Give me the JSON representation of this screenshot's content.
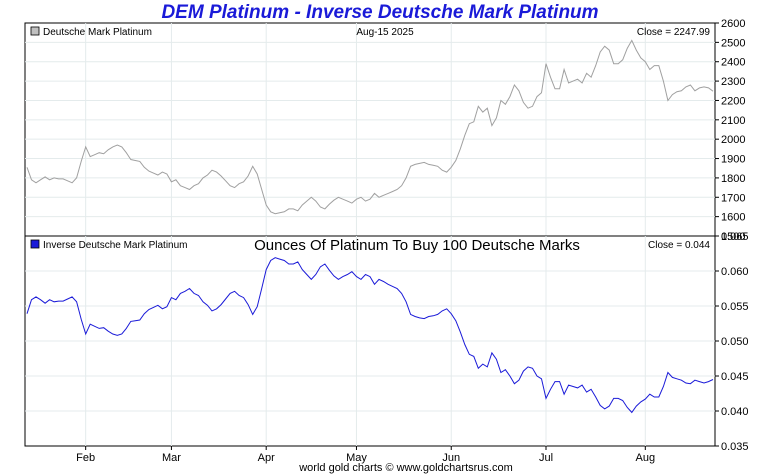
{
  "title": "DEM Platinum - Inverse Deutsche Mark Platinum",
  "footer": "world gold charts © www.goldchartsrus.com",
  "colors": {
    "title": "#1a1ad8",
    "top_series": "#a0a0a0",
    "bottom_series": "#1a1ad8",
    "grid": "#e4ebec"
  },
  "chart_data": [
    {
      "type": "line",
      "date_label": "Aug-15  2025",
      "close_label": "Close = 2247.99",
      "series": [
        {
          "name": "Deutsche Mark Platinum",
          "values": [
            1855,
            1790,
            1775,
            1790,
            1805,
            1790,
            1800,
            1795,
            1795,
            1785,
            1775,
            1800,
            1885,
            1960,
            1910,
            1920,
            1930,
            1925,
            1945,
            1960,
            1970,
            1960,
            1930,
            1895,
            1890,
            1885,
            1855,
            1835,
            1825,
            1815,
            1830,
            1820,
            1780,
            1790,
            1760,
            1750,
            1740,
            1760,
            1770,
            1800,
            1815,
            1840,
            1830,
            1810,
            1785,
            1760,
            1750,
            1770,
            1780,
            1810,
            1860,
            1820,
            1740,
            1660,
            1625,
            1615,
            1620,
            1625,
            1640,
            1640,
            1630,
            1660,
            1680,
            1700,
            1680,
            1650,
            1640,
            1665,
            1685,
            1700,
            1690,
            1680,
            1670,
            1690,
            1700,
            1680,
            1690,
            1720,
            1700,
            1710,
            1720,
            1730,
            1740,
            1760,
            1800,
            1860,
            1870,
            1875,
            1880,
            1870,
            1865,
            1860,
            1840,
            1830,
            1855,
            1890,
            1950,
            2020,
            2080,
            2090,
            2170,
            2140,
            2160,
            2070,
            2110,
            2200,
            2180,
            2220,
            2280,
            2250,
            2190,
            2160,
            2170,
            2220,
            2240,
            2390,
            2320,
            2260,
            2260,
            2360,
            2290,
            2300,
            2310,
            2290,
            2340,
            2320,
            2380,
            2450,
            2480,
            2460,
            2390,
            2390,
            2410,
            2470,
            2510,
            2460,
            2420,
            2400,
            2360,
            2380,
            2380,
            2300,
            2200,
            2230,
            2245,
            2250,
            2270,
            2280,
            2250,
            2265,
            2270,
            2265,
            2248
          ]
        }
      ],
      "ylim": [
        1500,
        2600
      ],
      "yticks": [
        1500,
        1600,
        1700,
        1800,
        1900,
        2000,
        2100,
        2200,
        2300,
        2400,
        2500,
        2600
      ],
      "grid": true
    },
    {
      "type": "line",
      "subtitle": "Ounces Of Platinum To Buy 100 Deutsche Marks",
      "close_label": "Close = 0.044",
      "series": [
        {
          "name": "Inverse Deutsche Mark Platinum",
          "values": [
            0.0539,
            0.0559,
            0.0563,
            0.0559,
            0.0554,
            0.0559,
            0.0556,
            0.0557,
            0.0557,
            0.056,
            0.0563,
            0.0556,
            0.0531,
            0.051,
            0.0524,
            0.0521,
            0.0518,
            0.0519,
            0.0514,
            0.051,
            0.0508,
            0.051,
            0.0518,
            0.0528,
            0.0529,
            0.053,
            0.0539,
            0.0545,
            0.0548,
            0.0551,
            0.0546,
            0.0549,
            0.0562,
            0.0559,
            0.0568,
            0.0571,
            0.0575,
            0.0568,
            0.0565,
            0.0556,
            0.0551,
            0.0543,
            0.0546,
            0.0552,
            0.056,
            0.0568,
            0.0571,
            0.0565,
            0.0562,
            0.0552,
            0.0538,
            0.0549,
            0.0575,
            0.0602,
            0.0615,
            0.0619,
            0.0617,
            0.0615,
            0.061,
            0.061,
            0.0613,
            0.0602,
            0.0595,
            0.0588,
            0.0595,
            0.0606,
            0.061,
            0.0601,
            0.0593,
            0.0588,
            0.0592,
            0.0595,
            0.0599,
            0.0592,
            0.0588,
            0.0595,
            0.0592,
            0.0581,
            0.0588,
            0.0585,
            0.0581,
            0.0578,
            0.0575,
            0.0568,
            0.0556,
            0.0538,
            0.0535,
            0.0533,
            0.0532,
            0.0535,
            0.0536,
            0.0538,
            0.0543,
            0.0546,
            0.0539,
            0.0529,
            0.0513,
            0.0495,
            0.0481,
            0.0478,
            0.0461,
            0.0467,
            0.0463,
            0.0483,
            0.0474,
            0.0455,
            0.0459,
            0.045,
            0.0439,
            0.0444,
            0.0457,
            0.0463,
            0.0461,
            0.045,
            0.0446,
            0.0418,
            0.0431,
            0.0442,
            0.0442,
            0.0424,
            0.0437,
            0.0435,
            0.0433,
            0.0437,
            0.0427,
            0.0431,
            0.042,
            0.0408,
            0.0403,
            0.0407,
            0.0418,
            0.0418,
            0.0415,
            0.0405,
            0.0398,
            0.0407,
            0.0413,
            0.0417,
            0.0424,
            0.042,
            0.042,
            0.0435,
            0.0455,
            0.0448,
            0.0446,
            0.0444,
            0.044,
            0.0439,
            0.0444,
            0.0442,
            0.044,
            0.0442,
            0.0445
          ]
        }
      ],
      "ylim": [
        0.035,
        0.065
      ],
      "yticks": [
        0.035,
        0.04,
        0.045,
        0.05,
        0.055,
        0.06,
        0.065
      ],
      "grid": true
    }
  ],
  "x_labels": [
    {
      "label": "Feb",
      "index": 13
    },
    {
      "label": "Mar",
      "index": 32
    },
    {
      "label": "Apr",
      "index": 53
    },
    {
      "label": "May",
      "index": 73
    },
    {
      "label": "Jun",
      "index": 94
    },
    {
      "label": "Jul",
      "index": 115
    },
    {
      "label": "Aug",
      "index": 137
    }
  ]
}
